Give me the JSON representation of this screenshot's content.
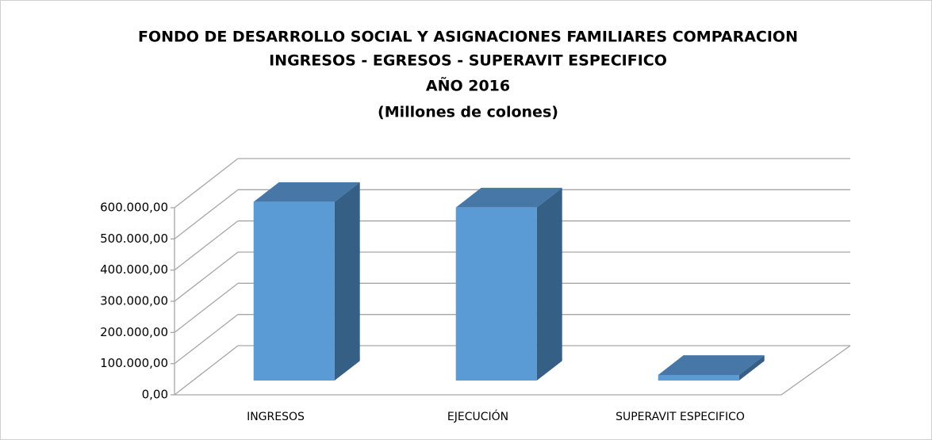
{
  "chart_data": {
    "type": "bar3d",
    "title": [
      "FONDO DE DESARROLLO SOCIAL Y ASIGNACIONES FAMILIARES COMPARACION",
      "INGRESOS - EGRESOS - SUPERAVIT ESPECIFICO",
      "AÑO 2016",
      "(Millones de colones)"
    ],
    "categories": [
      "INGRESOS",
      "EJECUCIÓN",
      "SUPERAVIT ESPECIFICO"
    ],
    "values": [
      573000,
      555000,
      18000
    ],
    "color": "#5b9bd5",
    "ylim": [
      0,
      600000
    ],
    "yticks": [
      {
        "value": 0,
        "label": "0,00"
      },
      {
        "value": 100000,
        "label": "100.000,00"
      },
      {
        "value": 200000,
        "label": "200.000,00"
      },
      {
        "value": 300000,
        "label": "300.000,00"
      },
      {
        "value": 400000,
        "label": "400.000,00"
      },
      {
        "value": 500000,
        "label": "500.000,00"
      },
      {
        "value": 600000,
        "label": "600.000,00"
      }
    ],
    "grid": true
  }
}
